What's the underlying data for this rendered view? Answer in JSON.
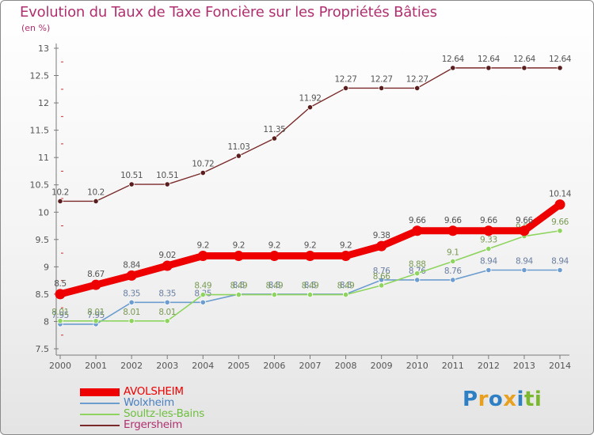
{
  "chart_data": {
    "type": "line",
    "title": "Evolution du Taux de Taxe Foncière sur les Propriétés Bâties",
    "subtitle": "(en %)",
    "x": [
      "2000",
      "2001",
      "2002",
      "2003",
      "2004",
      "2005",
      "2006",
      "2007",
      "2008",
      "2009",
      "2010",
      "2011",
      "2012",
      "2013",
      "2014"
    ],
    "ylim": [
      7.5,
      13
    ],
    "yticks": [
      "7.5",
      "8",
      "8.5",
      "9",
      "9.5",
      "10",
      "10.5",
      "11",
      "11.5",
      "12",
      "12.5",
      "13"
    ],
    "grid": false,
    "series": [
      {
        "name": "AVOLSHEIM",
        "color": "#ee0000",
        "values": [
          8.5,
          8.67,
          8.84,
          9.02,
          9.2,
          9.2,
          9.2,
          9.2,
          9.2,
          9.38,
          9.66,
          9.66,
          9.66,
          9.66,
          10.14
        ],
        "labels": [
          "8.5",
          "8.67",
          "8.84",
          "9.02",
          "9.2",
          "9.2",
          "9.2",
          "9.2",
          "9.2",
          "9.38",
          "9.66",
          "9.66",
          "9.66",
          "9.66",
          "10.14"
        ]
      },
      {
        "name": "Wolxheim",
        "color": "#6d9dcf",
        "values": [
          7.95,
          7.95,
          8.35,
          8.35,
          8.35,
          8.5,
          8.5,
          8.5,
          8.5,
          8.76,
          8.76,
          8.76,
          8.94,
          8.94,
          8.94
        ],
        "labels": [
          "7.95",
          "7.95",
          "8.35",
          "8.35",
          "8.35",
          "8.5",
          "8.5",
          "8.5",
          "8.5",
          "8.76",
          "8.76",
          "8.76",
          "8.94",
          "8.94",
          "8.94"
        ]
      },
      {
        "name": "Soultz-les-Bains",
        "color": "#8ed45f",
        "values": [
          8.01,
          8.01,
          8.01,
          8.01,
          8.49,
          8.49,
          8.49,
          8.49,
          8.49,
          8.66,
          8.88,
          9.1,
          9.33,
          9.56,
          9.66
        ],
        "labels": [
          "8.01",
          "8.01",
          "8.01",
          "8.01",
          "8.49",
          "8.49",
          "8.49",
          "8.49",
          "8.49",
          "8.66",
          "8.88",
          "9.1",
          "9.33",
          "9.56",
          "9.66"
        ]
      },
      {
        "name": "Ergersheim",
        "color": "#7a2a2a",
        "values": [
          10.2,
          10.2,
          10.51,
          10.51,
          10.72,
          11.03,
          11.35,
          11.92,
          12.27,
          12.27,
          12.27,
          12.64,
          12.64,
          12.64,
          12.64
        ],
        "labels": [
          "10.2",
          "10.2",
          "10.51",
          "10.51",
          "10.72",
          "11.03",
          "11.35",
          "11.92",
          "12.27",
          "12.27",
          "12.27",
          "12.64",
          "12.64",
          "12.64",
          "12.64"
        ]
      }
    ],
    "legend": {
      "placement": "bottom-left",
      "entries": [
        "AVOLSHEIM",
        "Wolxheim",
        "Soultz-les-Bains",
        "Ergersheim"
      ]
    }
  },
  "branding": {
    "logo_text": "Proxiti",
    "logo_letters": [
      "P",
      "r",
      "o",
      "x",
      "i",
      "ti"
    ]
  }
}
